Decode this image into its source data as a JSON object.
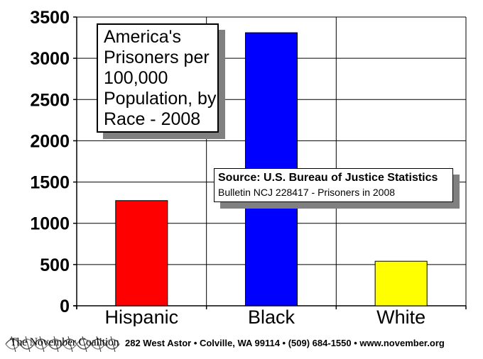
{
  "chart_data": {
    "type": "bar",
    "title": "America's\nPrisoners per\n100,000\nPopulation, by\nRace - 2008",
    "categories": [
      "Hispanic",
      "Black",
      "White"
    ],
    "values": [
      1275,
      3310,
      540
    ],
    "colors": [
      "#ff0000",
      "#0000ff",
      "#ffff00"
    ],
    "ylim": [
      0,
      3500
    ],
    "yticks": [
      "0",
      "500",
      "1000",
      "1500",
      "2000",
      "2500",
      "3000",
      "3500"
    ],
    "ytick_values": [
      0,
      500,
      1000,
      1500,
      2000,
      2500,
      3000,
      3500
    ],
    "grid": true,
    "annotation": {
      "line1": "Source: U.S. Bureau of Justice Statistics",
      "line2": "Bulletin NCJ 228417 - Prisoners in 2008"
    }
  },
  "footer": {
    "logo_text": "The November Coalition",
    "address": "282 West Astor • Colville, WA 99114 • (509) 684-1550 • www.november.org"
  }
}
